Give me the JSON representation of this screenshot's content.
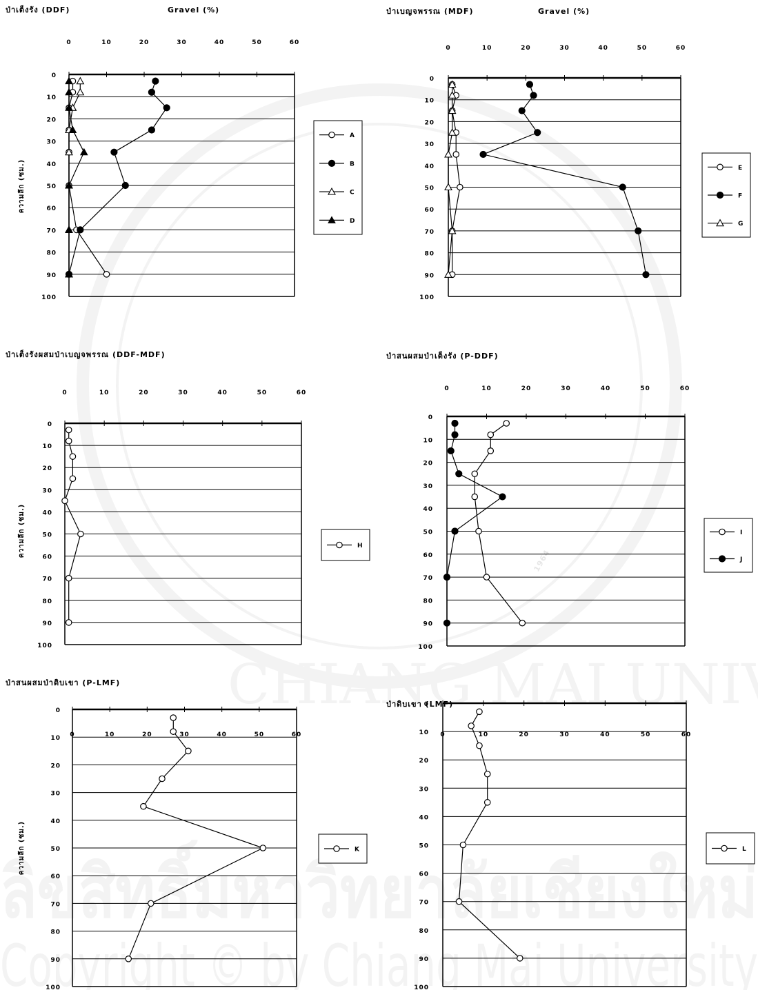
{
  "colors": {
    "line": "#000000",
    "background": "#ffffff",
    "watermark": "#808080"
  },
  "chart_data": [
    {
      "type": "line",
      "title": "ป่าเต็งรัง (DDF)",
      "axis_title": "Gravel (%)",
      "ylabel": "ความลึก (ซม.)",
      "xlim": [
        0,
        60
      ],
      "xticks": [
        "0",
        "10",
        "20",
        "30",
        "40",
        "50",
        "60"
      ],
      "ylim": [
        0,
        100
      ],
      "yticks": [
        "0",
        "10",
        "20",
        "30",
        "40",
        "50",
        "60",
        "70",
        "80",
        "90",
        "100"
      ],
      "grid": "horizontal",
      "legend_position": "right",
      "series": [
        {
          "name": "A",
          "marker": "circle-open",
          "points": [
            [
              1,
              3
            ],
            [
              1,
              8
            ],
            [
              0,
              15
            ],
            [
              0,
              25
            ],
            [
              0,
              35
            ],
            [
              0,
              50
            ],
            [
              2,
              70
            ],
            [
              10,
              90
            ]
          ]
        },
        {
          "name": "B",
          "marker": "circle-filled",
          "points": [
            [
              23,
              3
            ],
            [
              22,
              8
            ],
            [
              26,
              15
            ],
            [
              22,
              25
            ],
            [
              12,
              35
            ],
            [
              15,
              50
            ],
            [
              3,
              70
            ],
            [
              0,
              90
            ]
          ]
        },
        {
          "name": "C",
          "marker": "triangle-open",
          "points": [
            [
              3,
              3
            ],
            [
              3,
              8
            ],
            [
              1,
              15
            ],
            [
              0,
              25
            ],
            [
              0,
              35
            ],
            [
              0,
              50
            ],
            [
              0,
              70
            ],
            [
              0,
              90
            ]
          ]
        },
        {
          "name": "D",
          "marker": "triangle-filled",
          "points": [
            [
              0,
              3
            ],
            [
              0,
              8
            ],
            [
              0,
              15
            ],
            [
              1,
              25
            ],
            [
              4,
              35
            ],
            [
              0,
              50
            ],
            [
              0,
              70
            ],
            [
              0,
              90
            ]
          ]
        }
      ]
    },
    {
      "type": "line",
      "title": "ป่าเบญจพรรณ (MDF)",
      "axis_title": "Gravel (%)",
      "ylabel": "",
      "xlim": [
        0,
        60
      ],
      "xticks": [
        "0",
        "10",
        "20",
        "30",
        "40",
        "50",
        "60"
      ],
      "ylim": [
        0,
        100
      ],
      "yticks": [
        "0",
        "10",
        "20",
        "30",
        "40",
        "50",
        "60",
        "70",
        "80",
        "90",
        "100"
      ],
      "grid": "horizontal",
      "legend_position": "right",
      "series": [
        {
          "name": "E",
          "marker": "circle-open",
          "points": [
            [
              1,
              3
            ],
            [
              2,
              8
            ],
            [
              1,
              15
            ],
            [
              2,
              25
            ],
            [
              2,
              35
            ],
            [
              3,
              50
            ],
            [
              1,
              70
            ],
            [
              1,
              90
            ]
          ]
        },
        {
          "name": "F",
          "marker": "circle-filled",
          "points": [
            [
              21,
              3
            ],
            [
              22,
              8
            ],
            [
              19,
              15
            ],
            [
              23,
              25
            ],
            [
              9,
              35
            ],
            [
              45,
              50
            ],
            [
              49,
              70
            ],
            [
              51,
              90
            ]
          ]
        },
        {
          "name": "G",
          "marker": "triangle-open",
          "points": [
            [
              1,
              3
            ],
            [
              1,
              8
            ],
            [
              1,
              15
            ],
            [
              1,
              25
            ],
            [
              0,
              35
            ],
            [
              0,
              50
            ],
            [
              1,
              70
            ],
            [
              0,
              90
            ]
          ]
        }
      ]
    },
    {
      "type": "line",
      "title": "ป่าเต็งรังผสมป่าเบญจพรรณ (DDF-MDF)",
      "axis_title": "",
      "ylabel": "ความลึก (ซม.)",
      "xlim": [
        0,
        60
      ],
      "xticks": [
        "0",
        "10",
        "20",
        "30",
        "40",
        "50",
        "60"
      ],
      "ylim": [
        0,
        100
      ],
      "yticks": [
        "0",
        "10",
        "20",
        "30",
        "40",
        "50",
        "60",
        "70",
        "80",
        "90",
        "100"
      ],
      "grid": "horizontal",
      "legend_position": "right",
      "series": [
        {
          "name": "H",
          "marker": "circle-open",
          "points": [
            [
              1,
              3
            ],
            [
              1,
              8
            ],
            [
              2,
              15
            ],
            [
              2,
              25
            ],
            [
              0,
              35
            ],
            [
              4,
              50
            ],
            [
              1,
              70
            ],
            [
              1,
              90
            ]
          ]
        }
      ]
    },
    {
      "type": "line",
      "title": "ป่าสนผสมป่าเต็งรัง (P-DDF)",
      "axis_title": "",
      "ylabel": "",
      "xlim": [
        0,
        60
      ],
      "xticks": [
        "0",
        "10",
        "20",
        "30",
        "40",
        "50",
        "60"
      ],
      "ylim": [
        0,
        100
      ],
      "yticks": [
        "0",
        "10",
        "20",
        "30",
        "40",
        "50",
        "60",
        "70",
        "80",
        "90",
        "100"
      ],
      "grid": "horizontal",
      "legend_position": "right",
      "series": [
        {
          "name": "I",
          "marker": "circle-open",
          "points": [
            [
              15,
              3
            ],
            [
              11,
              8
            ],
            [
              11,
              15
            ],
            [
              7,
              25
            ],
            [
              7,
              35
            ],
            [
              8,
              50
            ],
            [
              10,
              70
            ],
            [
              19,
              90
            ]
          ]
        },
        {
          "name": "J",
          "marker": "circle-filled",
          "points": [
            [
              2,
              3
            ],
            [
              2,
              8
            ],
            [
              1,
              15
            ],
            [
              3,
              25
            ],
            [
              14,
              35
            ],
            [
              2,
              50
            ],
            [
              0,
              70
            ],
            [
              0,
              90
            ]
          ]
        }
      ]
    },
    {
      "type": "line",
      "title": "ป่าสนผสมป่าดิบเขา (P-LMF)",
      "axis_title": "",
      "ylabel": "ความลึก (ซม.)",
      "xlim": [
        0,
        60
      ],
      "xticks": [
        "0",
        "10",
        "20",
        "30",
        "40",
        "50",
        "60"
      ],
      "ylim": [
        0,
        100
      ],
      "yticks": [
        "0",
        "10",
        "20",
        "30",
        "40",
        "50",
        "60",
        "70",
        "80",
        "90",
        "100"
      ],
      "grid": "horizontal",
      "legend_position": "right",
      "series": [
        {
          "name": "K",
          "marker": "circle-open",
          "points": [
            [
              27,
              3
            ],
            [
              27,
              8
            ],
            [
              31,
              15
            ],
            [
              24,
              25
            ],
            [
              19,
              35
            ],
            [
              51,
              50
            ],
            [
              21,
              70
            ],
            [
              15,
              90
            ]
          ]
        }
      ]
    },
    {
      "type": "line",
      "title": "ป่าดิบเขา (LMF)",
      "axis_title": "",
      "ylabel": "",
      "xlim": [
        0,
        60
      ],
      "xticks": [
        "0",
        "10",
        "20",
        "30",
        "40",
        "50",
        "60"
      ],
      "ylim": [
        0,
        100
      ],
      "yticks": [
        "0",
        "10",
        "20",
        "30",
        "40",
        "50",
        "60",
        "70",
        "80",
        "90",
        "100"
      ],
      "grid": "horizontal",
      "legend_position": "right",
      "series": [
        {
          "name": "L",
          "marker": "circle-open",
          "points": [
            [
              9,
              3
            ],
            [
              7,
              8
            ],
            [
              9,
              15
            ],
            [
              11,
              25
            ],
            [
              11,
              35
            ],
            [
              5,
              50
            ],
            [
              4,
              70
            ],
            [
              19,
              90
            ]
          ]
        }
      ]
    }
  ],
  "watermark": {
    "lines": [
      "ลิขสิทธิ์มหาวิทยาลัยเชียงใหม่",
      "Copyright © by Chiang Mai University"
    ],
    "seal_text": "CHIANG MAI UNIVERSITY",
    "seal_year": "1964"
  }
}
